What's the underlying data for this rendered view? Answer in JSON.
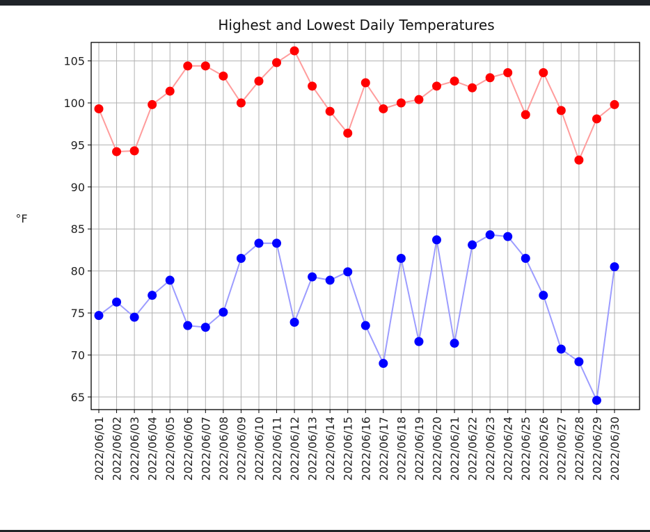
{
  "chart_data": {
    "type": "line",
    "title": "Highest and Lowest Daily Temperatures",
    "xlabel": "",
    "ylabel": "°F",
    "ylim": [
      63.5,
      107.2
    ],
    "yticks": [
      65,
      70,
      75,
      80,
      85,
      90,
      95,
      100,
      105
    ],
    "grid": true,
    "legend": false,
    "categories": [
      "2022/06/01",
      "2022/06/02",
      "2022/06/03",
      "2022/06/04",
      "2022/06/05",
      "2022/06/06",
      "2022/06/07",
      "2022/06/08",
      "2022/06/09",
      "2022/06/10",
      "2022/06/11",
      "2022/06/12",
      "2022/06/13",
      "2022/06/14",
      "2022/06/15",
      "2022/06/16",
      "2022/06/17",
      "2022/06/18",
      "2022/06/19",
      "2022/06/20",
      "2022/06/21",
      "2022/06/22",
      "2022/06/23",
      "2022/06/24",
      "2022/06/25",
      "2022/06/26",
      "2022/06/27",
      "2022/06/28",
      "2022/06/29",
      "2022/06/30"
    ],
    "series": [
      {
        "color": "#ff0000",
        "line_color": "#ff9c9c",
        "values": [
          99.3,
          94.2,
          94.3,
          99.8,
          101.4,
          104.4,
          104.4,
          103.2,
          100.0,
          102.6,
          104.8,
          106.2,
          102.0,
          99.0,
          96.4,
          102.4,
          99.3,
          100.0,
          100.4,
          102.0,
          102.6,
          101.8,
          103.0,
          103.6,
          98.6,
          103.6,
          99.1,
          93.2,
          98.1,
          99.8
        ]
      },
      {
        "color": "#0000ff",
        "line_color": "#9c9cff",
        "values": [
          74.7,
          76.3,
          74.5,
          77.1,
          78.9,
          73.5,
          73.3,
          75.1,
          81.5,
          83.3,
          83.3,
          73.9,
          79.3,
          78.9,
          79.9,
          73.5,
          69.0,
          81.5,
          71.6,
          83.7,
          71.4,
          83.1,
          84.3,
          84.1,
          81.5,
          77.1,
          70.7,
          69.2,
          64.6,
          80.5
        ]
      }
    ]
  }
}
